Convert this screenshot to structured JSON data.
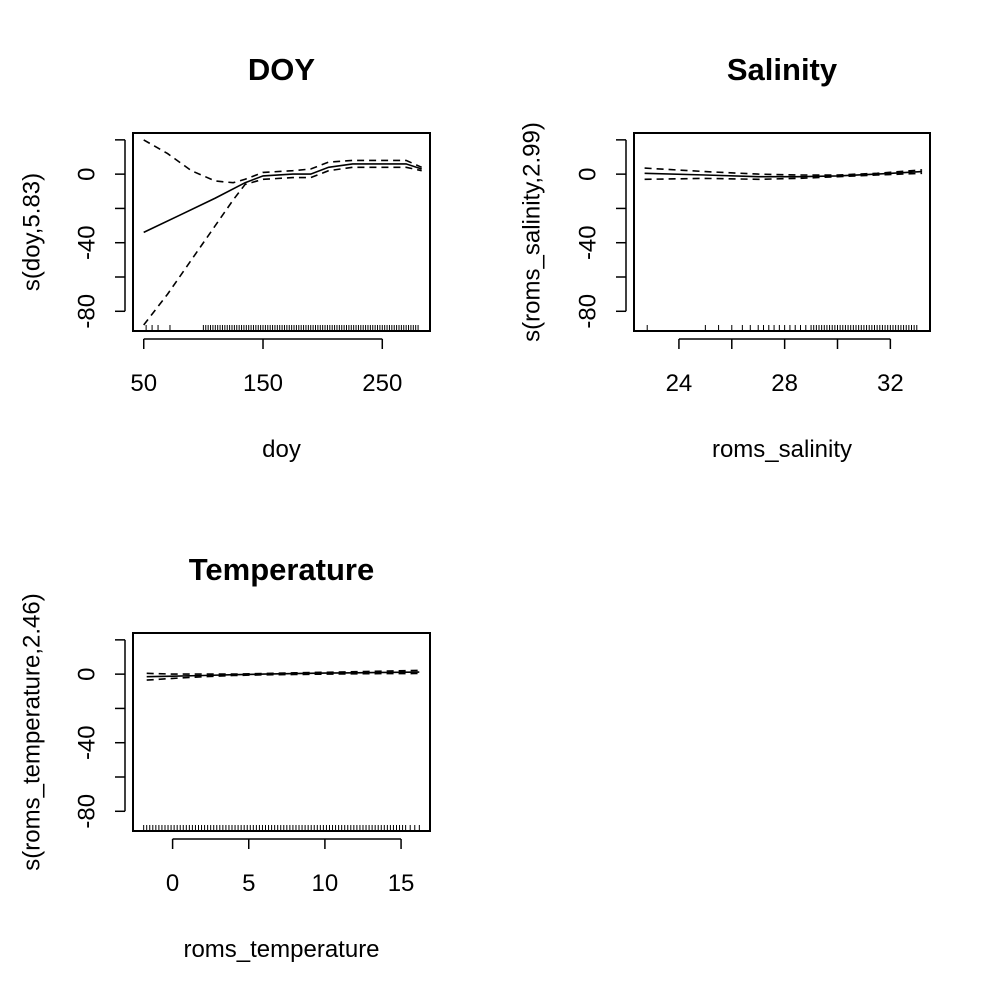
{
  "chart_data": [
    {
      "type": "line",
      "title": "DOY",
      "xlabel": "doy",
      "ylabel": "s(doy,5.83)",
      "xlim": [
        41,
        290
      ],
      "ylim": [
        -91.5,
        24
      ],
      "x_ticks": [
        50,
        150,
        250
      ],
      "x_tick_labels": [
        "50",
        "150",
        "250"
      ],
      "y_ticks": [
        -80,
        -60,
        -40,
        -20,
        0,
        20
      ],
      "y_tick_labels": [
        "-80",
        "",
        "-40",
        "",
        "0",
        ""
      ],
      "series": [
        {
          "x": [
            50,
            80,
            110,
            135,
            150,
            175,
            190,
            205,
            225,
            250,
            270,
            283
          ],
          "values": [
            -34,
            -24,
            -14,
            -5,
            -1,
            0,
            0,
            4,
            6,
            6,
            6,
            3
          ]
        },
        {
          "x": [
            50,
            70,
            90,
            110,
            125,
            135,
            150,
            175,
            190,
            205,
            225,
            250,
            270,
            283
          ],
          "values": [
            20,
            12,
            2,
            -4,
            -5,
            -3,
            1,
            2,
            3,
            7,
            8,
            8,
            8,
            4
          ]
        },
        {
          "x": [
            50,
            70,
            90,
            110,
            125,
            135,
            150,
            175,
            190,
            205,
            225,
            250,
            270,
            283
          ],
          "values": [
            -88,
            -70,
            -50,
            -30,
            -15,
            -6,
            -3,
            -2,
            -2,
            2,
            4,
            4,
            4,
            2
          ]
        }
      ],
      "rug": [
        52,
        57,
        62,
        72,
        100,
        102,
        104,
        106,
        108,
        110,
        112,
        114,
        116,
        118,
        120,
        122,
        124,
        126,
        128,
        130,
        132,
        134,
        136,
        138,
        140,
        142,
        144,
        146,
        148,
        150,
        152,
        154,
        156,
        158,
        160,
        162,
        164,
        166,
        168,
        170,
        172,
        174,
        176,
        178,
        180,
        182,
        184,
        186,
        188,
        190,
        192,
        194,
        196,
        198,
        200,
        202,
        204,
        206,
        208,
        210,
        212,
        214,
        216,
        218,
        220,
        222,
        224,
        226,
        228,
        230,
        232,
        234,
        236,
        238,
        240,
        242,
        244,
        246,
        248,
        250,
        252,
        254,
        256,
        258,
        260,
        262,
        264,
        266,
        268,
        270,
        272,
        274,
        276,
        278,
        280
      ]
    },
    {
      "type": "line",
      "title": "Salinity",
      "xlabel": "roms_salinity",
      "ylabel": "s(roms_salinity,2.99)",
      "xlim": [
        22.3,
        33.5
      ],
      "ylim": [
        -91.5,
        24
      ],
      "x_ticks": [
        24,
        26,
        28,
        30,
        32
      ],
      "x_tick_labels": [
        "24",
        "",
        "28",
        "",
        "32"
      ],
      "y_ticks": [
        -80,
        -60,
        -40,
        -20,
        0,
        20
      ],
      "y_tick_labels": [
        "-80",
        "",
        "-40",
        "",
        "0",
        ""
      ],
      "series": [
        {
          "x": [
            22.7,
            25,
            27,
            28.5,
            30,
            31.5,
            33.2
          ],
          "values": [
            0.5,
            -0.5,
            -1.5,
            -1.5,
            -1,
            0,
            1.5
          ]
        },
        {
          "x": [
            22.7,
            25,
            27,
            28.5,
            30,
            31.5,
            33.2
          ],
          "values": [
            3.5,
            1.5,
            0,
            -0.5,
            -0.5,
            0.5,
            2.5
          ]
        },
        {
          "x": [
            22.7,
            25,
            27,
            28.5,
            30,
            31.5,
            33.2
          ],
          "values": [
            -3,
            -2.5,
            -3,
            -2.5,
            -1.5,
            -0.5,
            0.5
          ]
        }
      ],
      "rug": [
        22.8,
        25.0,
        25.5,
        26.0,
        26.4,
        26.7,
        27.0,
        27.2,
        27.4,
        27.6,
        27.8,
        28.0,
        28.2,
        28.4,
        28.6,
        28.8,
        29.0,
        29.1,
        29.2,
        29.3,
        29.4,
        29.5,
        29.6,
        29.7,
        29.8,
        29.9,
        30.0,
        30.1,
        30.2,
        30.3,
        30.4,
        30.5,
        30.6,
        30.7,
        30.8,
        30.9,
        31.0,
        31.1,
        31.2,
        31.3,
        31.4,
        31.5,
        31.6,
        31.7,
        31.8,
        31.9,
        32.0,
        32.1,
        32.2,
        32.3,
        32.4,
        32.5,
        32.6,
        32.7,
        32.8,
        32.9,
        33.0
      ]
    },
    {
      "type": "line",
      "title": "Temperature",
      "xlabel": "roms_temperature",
      "ylabel": "s(roms_temperature,2.46)",
      "xlim": [
        -2.6,
        16.9
      ],
      "ylim": [
        -91.5,
        24
      ],
      "x_ticks": [
        0,
        5,
        10,
        15
      ],
      "x_tick_labels": [
        "0",
        "5",
        "10",
        "15"
      ],
      "y_ticks": [
        -80,
        -60,
        -40,
        -20,
        0,
        20
      ],
      "y_tick_labels": [
        "-80",
        "",
        "-40",
        "",
        "0",
        ""
      ],
      "series": [
        {
          "x": [
            -1.7,
            0,
            2,
            4,
            6,
            8,
            10,
            12,
            14,
            16.2
          ],
          "values": [
            -1.5,
            -1.2,
            -0.8,
            -0.3,
            0,
            0.3,
            0.6,
            0.8,
            1,
            1.2
          ]
        },
        {
          "x": [
            -1.7,
            0,
            2,
            4,
            6,
            8,
            10,
            12,
            14,
            16.2
          ],
          "values": [
            0.5,
            0,
            0,
            0,
            0.4,
            0.8,
            1.1,
            1.4,
            1.8,
            2.2
          ]
        },
        {
          "x": [
            -1.7,
            0,
            2,
            4,
            6,
            8,
            10,
            12,
            14,
            16.2
          ],
          "values": [
            -3.5,
            -2.5,
            -1.5,
            -0.8,
            -0.4,
            -0.2,
            0,
            0.2,
            0.3,
            0.4
          ]
        }
      ],
      "rug": [
        -1.9,
        -1.7,
        -1.5,
        -1.3,
        -1.1,
        -0.9,
        -0.7,
        -0.5,
        -0.3,
        -0.1,
        0.1,
        0.3,
        0.5,
        0.7,
        0.9,
        1.1,
        1.3,
        1.5,
        1.7,
        1.9,
        2.1,
        2.3,
        2.5,
        2.7,
        2.9,
        3.1,
        3.3,
        3.5,
        3.7,
        3.9,
        4.1,
        4.3,
        4.5,
        4.7,
        4.9,
        5.1,
        5.3,
        5.5,
        5.7,
        5.9,
        6.1,
        6.3,
        6.5,
        6.7,
        6.9,
        7.1,
        7.3,
        7.5,
        7.7,
        7.9,
        8.1,
        8.3,
        8.5,
        8.7,
        8.9,
        9.1,
        9.3,
        9.5,
        9.7,
        9.9,
        10.1,
        10.3,
        10.5,
        10.7,
        10.9,
        11.1,
        11.3,
        11.5,
        11.7,
        11.9,
        12.1,
        12.3,
        12.5,
        12.7,
        12.9,
        13.1,
        13.3,
        13.5,
        13.7,
        13.9,
        14.1,
        14.3,
        14.5,
        14.7,
        14.9,
        15.1,
        15.3,
        15.6,
        15.9,
        16.2
      ]
    }
  ]
}
